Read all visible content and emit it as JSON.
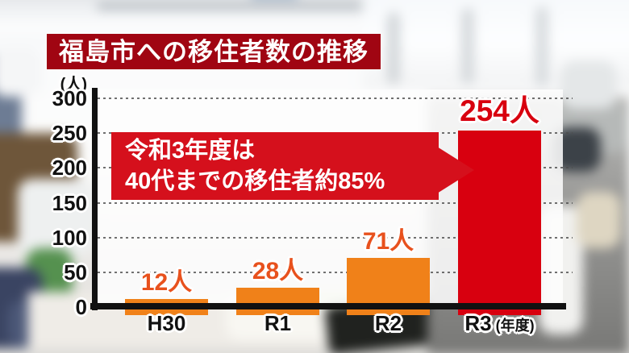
{
  "banner": {
    "title": "福島市への移住者数の推移"
  },
  "callout": {
    "line1": "令和3年度は",
    "line2": "40代までの移住者約85%"
  },
  "chart_data": {
    "type": "bar",
    "title": "福島市への移住者数の推移",
    "unit_label": "(人)",
    "categories": [
      "H30",
      "R1",
      "R2",
      "R3"
    ],
    "values": [
      12,
      28,
      71,
      254
    ],
    "value_labels": [
      "12人",
      "28人",
      "71人",
      "254人"
    ],
    "x_axis_suffix": "(年度)",
    "ylabel": "(人)",
    "xlabel": "(年度)",
    "ylim": [
      0,
      300
    ],
    "yticks": [
      0,
      50,
      100,
      150,
      200,
      250,
      300
    ],
    "grid": "horizontal dotted",
    "legend": "none",
    "annotation": "令和3年度は 40代までの移住者約85%",
    "bar_colors": [
      "#f08119",
      "#f08119",
      "#f08119",
      "#d8000f"
    ],
    "value_label_colors": [
      "#e8511d",
      "#e8511d",
      "#e8511d",
      "#d8000f"
    ]
  },
  "colors": {
    "banner_bg": "#a00512",
    "callout_bg": "#d5101c",
    "bar_orange": "#f08119",
    "bar_red": "#d8000f",
    "axis": "#111111",
    "plot_bg": "rgba(253,253,253,0.87)"
  }
}
